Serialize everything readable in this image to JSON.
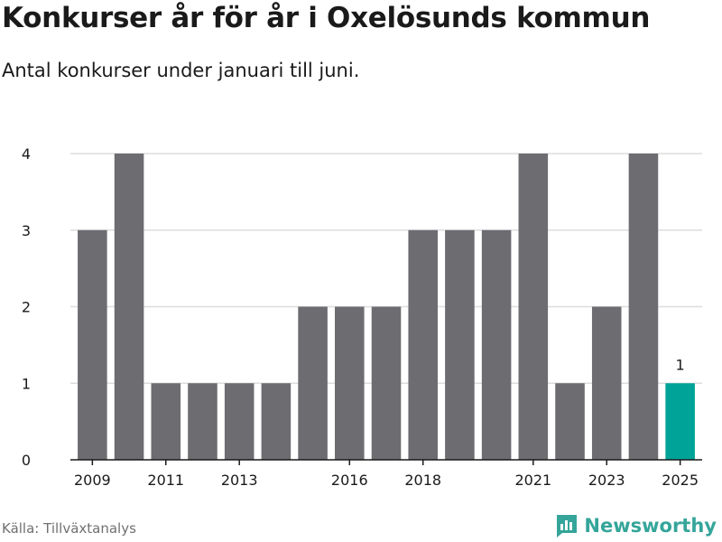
{
  "header": {
    "title": "Konkurser år för år i Oxelösunds kommun",
    "subtitle": "Antal konkurser under januari till juni."
  },
  "footer": {
    "source": "Källa: Tillväxtanalys",
    "brand": "Newsworthy"
  },
  "icons": {
    "brand_logo": "bar-chart-logo-icon"
  },
  "colors": {
    "bar": "#6d6c71",
    "highlight": "#00a398",
    "grid": "#dddddd",
    "axis": "#1a1a1a",
    "brand": "#35a59a"
  },
  "chart_data": {
    "type": "bar",
    "title": "Konkurser år för år i Oxelösunds kommun",
    "subtitle": "Antal konkurser under januari till juni.",
    "xlabel": "",
    "ylabel": "",
    "categories": [
      "2009",
      "2010",
      "2011",
      "2012",
      "2013",
      "2014",
      "2015",
      "2016",
      "2017",
      "2018",
      "2019",
      "2020",
      "2021",
      "2022",
      "2023",
      "2024",
      "2025"
    ],
    "values": [
      3,
      4,
      1,
      1,
      1,
      1,
      2,
      2,
      2,
      3,
      3,
      3,
      4,
      1,
      2,
      4,
      1
    ],
    "highlight_category": "2025",
    "data_labels": [
      {
        "category": "2025",
        "text": "1"
      }
    ],
    "x_tick_labels": [
      "2009",
      "2011",
      "2013",
      "2016",
      "2018",
      "2021",
      "2023",
      "2025"
    ],
    "y_ticks": [
      0,
      1,
      2,
      3,
      4
    ],
    "ylim": [
      0,
      4
    ],
    "grid": true,
    "legend": "none"
  }
}
